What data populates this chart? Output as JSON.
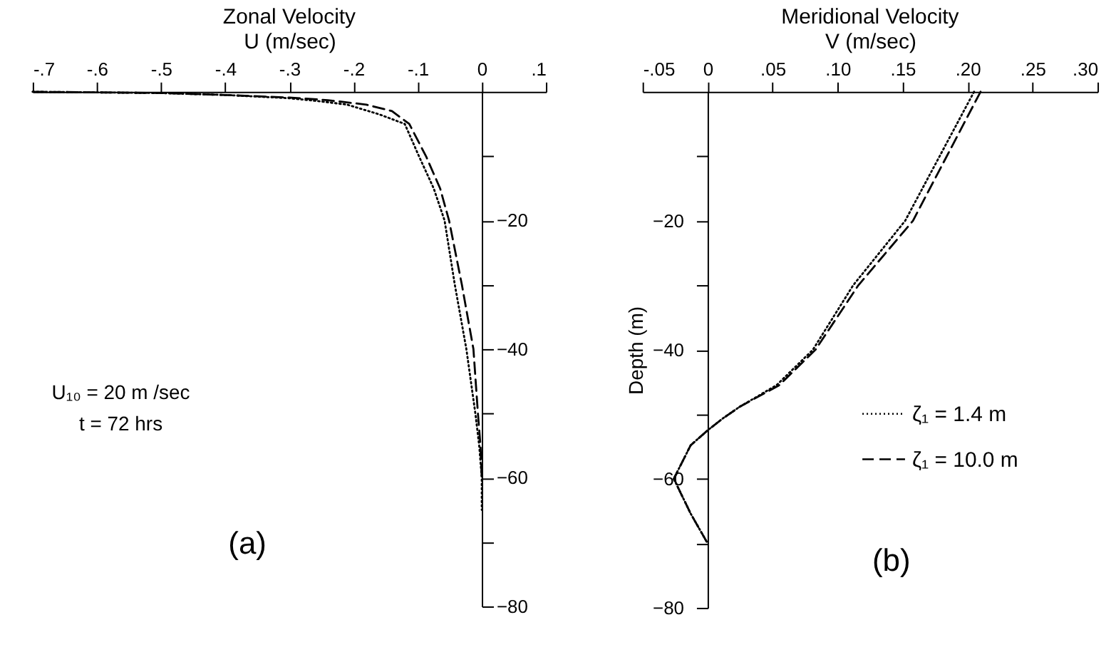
{
  "chart_data": [
    {
      "type": "line",
      "title": "Zonal Velocity",
      "xlabel": "U  (m/sec)",
      "xlim": [
        -0.7,
        0.1
      ],
      "xticks": [
        {
          "value": -0.7,
          "label": "-.7"
        },
        {
          "value": -0.6,
          "label": "-.6"
        },
        {
          "value": -0.5,
          "label": "-.5"
        },
        {
          "value": -0.4,
          "label": "-.4"
        },
        {
          "value": -0.3,
          "label": "-.3"
        },
        {
          "value": -0.2,
          "label": "-.2"
        },
        {
          "value": -0.1,
          "label": "-.1"
        },
        {
          "value": 0,
          "label": "0"
        },
        {
          "value": 0.1,
          "label": ".1"
        }
      ],
      "ylim": [
        -80,
        0
      ],
      "yticks": [
        {
          "value": -10,
          "label": null
        },
        -20,
        {
          "value": -30,
          "label": null
        },
        -40,
        {
          "value": -50,
          "label": null
        },
        -60,
        {
          "value": -70,
          "label": null
        },
        -80
      ],
      "grid": false,
      "legend": false,
      "series": [
        {
          "color": "#000000",
          "line_style": "dotted",
          "x": [
            -0.7,
            -0.5,
            -0.4,
            -0.3,
            -0.25,
            -0.21,
            -0.16,
            -0.12,
            -0.098,
            -0.075,
            -0.058,
            -0.042,
            -0.024,
            -0.01,
            -0.004,
            0,
            0
          ],
          "values": [
            0,
            -0.2,
            -0.5,
            -1.0,
            -1.5,
            -2,
            -3.5,
            -5,
            -10,
            -15,
            -20,
            -30,
            -40,
            -50,
            -55,
            -60,
            -65
          ]
        },
        {
          "color": "#000000",
          "line_style": "dashed",
          "x": [
            -0.7,
            -0.5,
            -0.4,
            -0.3,
            -0.24,
            -0.18,
            -0.14,
            -0.113,
            -0.087,
            -0.065,
            -0.051,
            -0.031,
            -0.013,
            -0.006,
            -0.002,
            0
          ],
          "values": [
            0,
            -0.2,
            -0.5,
            -0.9,
            -1.3,
            -2,
            -3,
            -5,
            -10,
            -15,
            -20,
            -30,
            -40,
            -50,
            -55,
            -60
          ]
        }
      ],
      "annotations": [
        "U₁₀ = 20 m /sec",
        "t = 72 hrs",
        "(a)"
      ]
    },
    {
      "type": "line",
      "title": "Meridional Velocity",
      "xlabel": "V  (m/sec)",
      "ylabel": "Depth (m)",
      "xlim": [
        -0.05,
        0.3
      ],
      "xticks": [
        {
          "value": -0.05,
          "label": "-.05"
        },
        {
          "value": 0,
          "label": "0"
        },
        {
          "value": 0.05,
          "label": ".05"
        },
        {
          "value": 0.1,
          "label": ".10"
        },
        {
          "value": 0.15,
          "label": ".15"
        },
        {
          "value": 0.2,
          "label": ".20"
        },
        {
          "value": 0.25,
          "label": ".25"
        },
        {
          "value": 0.3,
          "label": ".30"
        }
      ],
      "ylim": [
        -80,
        0
      ],
      "yticks": [
        {
          "value": -10,
          "label": null
        },
        -20,
        {
          "value": -30,
          "label": null
        },
        -40,
        {
          "value": -50,
          "label": null
        },
        -60,
        {
          "value": -70,
          "label": null
        },
        -80
      ],
      "grid": false,
      "legend": "right",
      "series": [
        {
          "name": "ζ₁ = 1.4 m",
          "color": "#000000",
          "line_style": "dotted",
          "x": [
            0.205,
            0.152,
            0.112,
            0.081,
            0.053,
            0.025,
            0.012,
            0,
            -0.013,
            -0.026,
            -0.013,
            0
          ],
          "values": [
            0,
            -20,
            -30,
            -40,
            -45.5,
            -48.8,
            -50.6,
            -52.5,
            -54.8,
            -60,
            -65.4,
            -70
          ]
        },
        {
          "name": "ζ₁ = 10.0 m",
          "color": "#000000",
          "line_style": "dashed",
          "x": [
            0.21,
            0.158,
            0.116,
            0.083,
            0.055,
            0.025,
            0.012,
            0,
            -0.013,
            -0.026,
            -0.013,
            0
          ],
          "values": [
            0,
            -20,
            -30,
            -40,
            -45.5,
            -48.8,
            -50.6,
            -52.5,
            -54.8,
            -60,
            -65.4,
            -70
          ]
        }
      ],
      "annotations": [
        "(b)"
      ]
    }
  ]
}
